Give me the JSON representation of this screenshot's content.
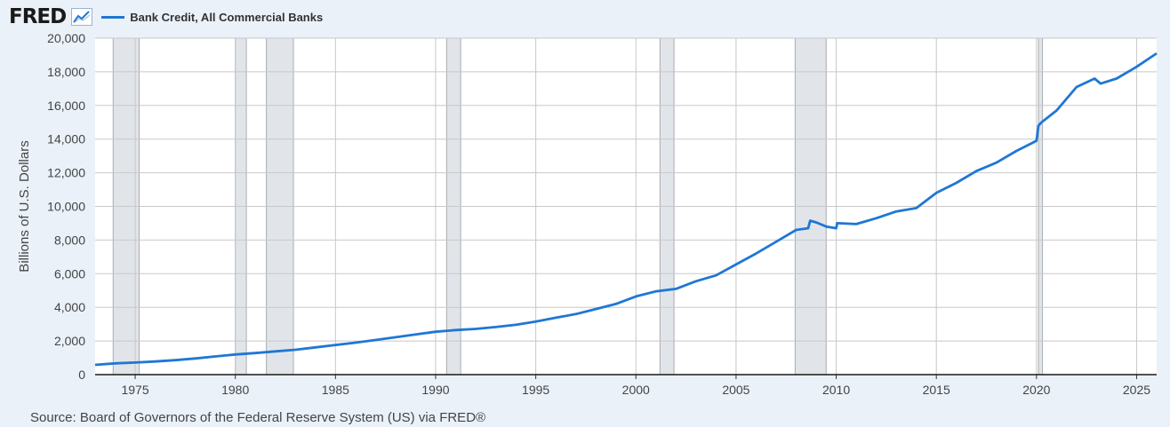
{
  "header": {
    "logo_text": "FRED",
    "logo_icon": "line-chart-icon"
  },
  "colors": {
    "series": "#1f77d4",
    "recession": "#e1e5ea",
    "grid": "#c8c8c8",
    "background": "#eaf1f9",
    "plot_background": "#ffffff"
  },
  "chart_data": {
    "type": "line",
    "title": "",
    "ylabel": "Billions of U.S. Dollars",
    "xlabel": "",
    "xlim": [
      1973.0,
      2026.0
    ],
    "ylim": [
      0,
      20000
    ],
    "yticks": [
      0,
      2000,
      4000,
      6000,
      8000,
      10000,
      12000,
      14000,
      16000,
      18000,
      20000
    ],
    "ytick_labels": [
      "0",
      "2,000",
      "4,000",
      "6,000",
      "8,000",
      "10,000",
      "12,000",
      "14,000",
      "16,000",
      "18,000",
      "20,000"
    ],
    "xticks": [
      1975,
      1980,
      1985,
      1990,
      1995,
      2000,
      2005,
      2010,
      2015,
      2020,
      2025
    ],
    "xtick_labels": [
      "1975",
      "1980",
      "1985",
      "1990",
      "1995",
      "2000",
      "2005",
      "2010",
      "2015",
      "2020",
      "2025"
    ],
    "grid": true,
    "legend_position": "top-left",
    "recessions": [
      [
        1973.9,
        1975.2
      ],
      [
        1980.0,
        1980.55
      ],
      [
        1981.55,
        1982.9
      ],
      [
        1990.55,
        1991.25
      ],
      [
        2001.2,
        2001.9
      ],
      [
        2007.95,
        2009.5
      ],
      [
        2020.1,
        2020.3
      ]
    ],
    "series": [
      {
        "name": "Bank Credit, All Commercial Banks",
        "x": [
          1973.0,
          1974.0,
          1975.0,
          1976.0,
          1977.0,
          1978.0,
          1979.0,
          1980.0,
          1981.0,
          1982.0,
          1983.0,
          1984.0,
          1985.0,
          1986.0,
          1987.0,
          1988.0,
          1989.0,
          1990.0,
          1991.0,
          1992.0,
          1993.0,
          1994.0,
          1995.0,
          1996.0,
          1997.0,
          1998.0,
          1999.0,
          2000.0,
          2001.0,
          2002.0,
          2003.0,
          2004.0,
          2005.0,
          2006.0,
          2007.0,
          2008.0,
          2008.6,
          2008.7,
          2009.0,
          2009.5,
          2010.0,
          2010.05,
          2011.0,
          2012.0,
          2013.0,
          2014.0,
          2015.0,
          2016.0,
          2017.0,
          2018.0,
          2019.0,
          2020.0,
          2020.1,
          2020.25,
          2021.0,
          2022.0,
          2022.9,
          2023.2,
          2024.0,
          2025.0,
          2026.0
        ],
        "values": [
          580,
          670,
          720,
          780,
          860,
          960,
          1080,
          1200,
          1280,
          1380,
          1480,
          1620,
          1760,
          1900,
          2060,
          2220,
          2390,
          2550,
          2650,
          2720,
          2830,
          2960,
          3150,
          3380,
          3600,
          3900,
          4200,
          4650,
          4950,
          5100,
          5550,
          5900,
          6550,
          7200,
          7900,
          8600,
          8700,
          9150,
          9050,
          8800,
          8700,
          9000,
          8950,
          9300,
          9700,
          9900,
          10800,
          11400,
          12100,
          12600,
          13300,
          13900,
          14800,
          15000,
          15700,
          17100,
          17600,
          17300,
          17600,
          18300,
          19100
        ]
      }
    ]
  },
  "source": "Source: Board of Governors of the Federal Reserve System (US) via FRED®"
}
